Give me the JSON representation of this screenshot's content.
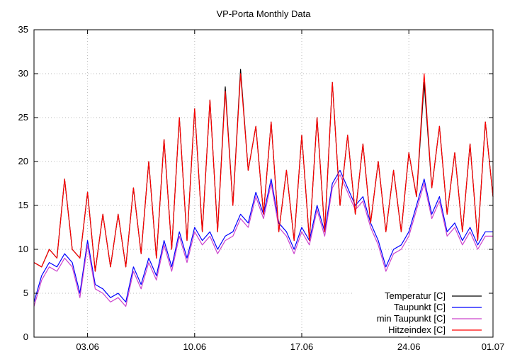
{
  "chart_data": {
    "type": "line",
    "title": "VP-Porta Monthly Data",
    "xlabel": "",
    "ylabel": "",
    "ylim": [
      0,
      35
    ],
    "xlim": [
      0,
      30
    ],
    "yticks": [
      0,
      5,
      10,
      15,
      20,
      25,
      30,
      35
    ],
    "xticks": [
      {
        "x": 3.5,
        "label": "03.06"
      },
      {
        "x": 10.5,
        "label": "10.06"
      },
      {
        "x": 17.5,
        "label": "17.06"
      },
      {
        "x": 24.5,
        "label": "24.06"
      },
      {
        "x": 30.0,
        "label": "01.07"
      }
    ],
    "grid": true,
    "legend_position": "bottom-right",
    "x": [
      0,
      0.5,
      1,
      1.5,
      2,
      2.5,
      3,
      3.5,
      4,
      4.5,
      5,
      5.5,
      6,
      6.5,
      7,
      7.5,
      8,
      8.5,
      9,
      9.5,
      10,
      10.5,
      11,
      11.5,
      12,
      12.5,
      13,
      13.5,
      14,
      14.5,
      15,
      15.5,
      16,
      16.5,
      17,
      17.5,
      18,
      18.5,
      19,
      19.5,
      20,
      20.5,
      21,
      21.5,
      22,
      22.5,
      23,
      23.5,
      24,
      24.5,
      25,
      25.5,
      26,
      26.5,
      27,
      27.5,
      28,
      28.5,
      29,
      29.5,
      30
    ],
    "series": [
      {
        "name": "Temperatur [C]",
        "color": "#000000",
        "values": [
          8.5,
          8,
          10,
          9,
          18,
          10,
          9,
          16.5,
          7.5,
          14,
          8,
          14,
          8,
          17,
          9.5,
          20,
          9,
          22.5,
          10,
          25,
          11,
          26,
          12,
          27,
          12,
          28.5,
          15,
          30.5,
          19,
          24,
          14,
          24.5,
          12,
          19,
          11,
          23,
          11,
          25,
          12,
          29,
          15,
          23,
          14,
          22,
          13,
          20,
          12,
          19,
          12,
          21,
          16,
          29,
          17,
          24,
          14,
          21,
          12,
          22,
          11,
          24.5,
          16
        ]
      },
      {
        "name": "Taupunkt [C]",
        "color": "#0000ff",
        "values": [
          4,
          7,
          8.5,
          8,
          9.5,
          8.5,
          5,
          11,
          6,
          5.5,
          4.5,
          5,
          4,
          8,
          6,
          9,
          7,
          11,
          8,
          12,
          9,
          12.5,
          11,
          12,
          10,
          11.5,
          12,
          14,
          13,
          16.5,
          14,
          18,
          13,
          12,
          10,
          12.5,
          11,
          15,
          12,
          17.5,
          19,
          17,
          15,
          16,
          13,
          11,
          8,
          10,
          10.5,
          12,
          15,
          18,
          14,
          16,
          12,
          13,
          11,
          12.5,
          10.5,
          12,
          12
        ]
      },
      {
        "name": "min Taupunkt [C]",
        "color": "#cc44cc",
        "values": [
          3.5,
          6.5,
          8,
          7.5,
          9,
          8,
          4.5,
          10.5,
          5.5,
          5,
          4,
          4.5,
          3.5,
          7.5,
          5.5,
          8.5,
          6.5,
          10.5,
          7.5,
          11.5,
          8.5,
          12,
          10.5,
          11.5,
          9.5,
          11,
          11.5,
          13.5,
          12.5,
          16,
          13.5,
          17.5,
          12.5,
          11.5,
          9.5,
          12,
          10.5,
          14.5,
          11.5,
          17,
          18.5,
          16.5,
          14.5,
          15.5,
          12.5,
          10.5,
          7.5,
          9.5,
          10,
          11.5,
          14.5,
          17.5,
          13.5,
          15.5,
          11.5,
          12.5,
          10.5,
          12,
          10,
          11.5,
          11.5
        ]
      },
      {
        "name": "Hitzeindex [C]",
        "color": "#ff0000",
        "values": [
          8.5,
          8,
          10,
          9,
          18,
          10,
          9,
          16.5,
          7.5,
          14,
          8,
          14,
          8,
          17,
          9.5,
          20,
          9,
          22.5,
          10,
          25,
          11,
          26,
          12,
          27,
          12,
          28,
          15,
          30,
          19,
          24,
          14,
          24.5,
          12,
          19,
          11,
          23,
          11,
          25,
          12,
          29,
          15,
          23,
          14,
          22,
          13,
          20,
          12,
          19,
          12,
          21,
          16,
          30,
          17,
          24,
          14,
          21,
          12,
          22,
          11,
          24.5,
          16
        ]
      }
    ]
  }
}
